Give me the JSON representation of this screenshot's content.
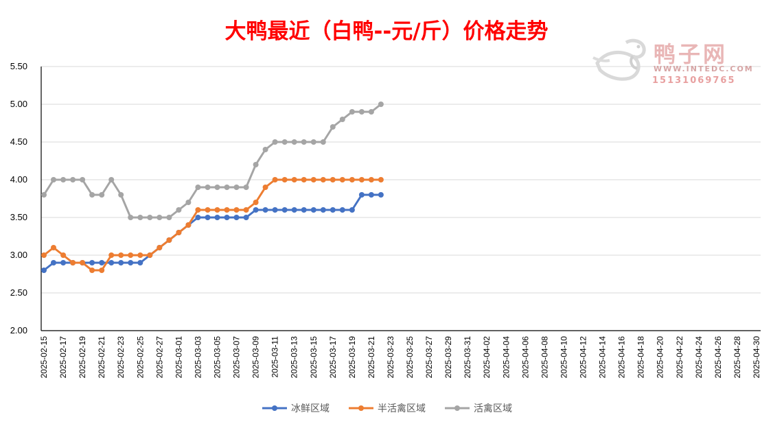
{
  "chart_data": {
    "type": "line",
    "title": "大鸭最近（白鸭--元/斤）价格走势",
    "ylim": [
      2.0,
      5.5
    ],
    "yticks": [
      "2.00",
      "2.50",
      "3.00",
      "3.50",
      "4.00",
      "4.50",
      "5.00",
      "5.50"
    ],
    "xlim": [
      "2025-02-15",
      "2025-04-30"
    ],
    "xticks": [
      "2025-02-15",
      "2025-02-17",
      "2025-02-19",
      "2025-02-21",
      "2025-02-23",
      "2025-02-25",
      "2025-02-27",
      "2025-03-01",
      "2025-03-03",
      "2025-03-05",
      "2025-03-07",
      "2025-03-09",
      "2025-03-11",
      "2025-03-13",
      "2025-03-15",
      "2025-03-17",
      "2025-03-19",
      "2025-03-21",
      "2025-03-23",
      "2025-03-25",
      "2025-03-27",
      "2025-03-29",
      "2025-03-31",
      "2025-04-02",
      "2025-04-04",
      "2025-04-06",
      "2025-04-08",
      "2025-04-10",
      "2025-04-12",
      "2025-04-14",
      "2025-04-16",
      "2025-04-18",
      "2025-04-20",
      "2025-04-22",
      "2025-04-24",
      "2025-04-26",
      "2025-04-28",
      "2025-04-30"
    ],
    "grid": true,
    "legend_position": "bottom",
    "x": [
      "2025-02-15",
      "2025-02-16",
      "2025-02-17",
      "2025-02-18",
      "2025-02-19",
      "2025-02-20",
      "2025-02-21",
      "2025-02-22",
      "2025-02-23",
      "2025-02-24",
      "2025-02-25",
      "2025-02-26",
      "2025-02-27",
      "2025-02-28",
      "2025-03-01",
      "2025-03-02",
      "2025-03-03",
      "2025-03-04",
      "2025-03-05",
      "2025-03-06",
      "2025-03-07",
      "2025-03-08",
      "2025-03-09",
      "2025-03-10",
      "2025-03-11",
      "2025-03-12",
      "2025-03-13",
      "2025-03-14",
      "2025-03-15",
      "2025-03-16",
      "2025-03-17",
      "2025-03-18",
      "2025-03-19",
      "2025-03-20",
      "2025-03-21",
      "2025-03-22"
    ],
    "series": [
      {
        "name": "冰鲜区域",
        "color": "#4472c4",
        "values": [
          2.8,
          2.9,
          2.9,
          2.9,
          2.9,
          2.9,
          2.9,
          2.9,
          2.9,
          2.9,
          2.9,
          3.0,
          3.1,
          3.2,
          3.3,
          3.4,
          3.5,
          3.5,
          3.5,
          3.5,
          3.5,
          3.5,
          3.6,
          3.6,
          3.6,
          3.6,
          3.6,
          3.6,
          3.6,
          3.6,
          3.6,
          3.6,
          3.6,
          3.8,
          3.8,
          3.8
        ]
      },
      {
        "name": "半活禽区域",
        "color": "#ed7d31",
        "values": [
          3.0,
          3.1,
          3.0,
          2.9,
          2.9,
          2.8,
          2.8,
          3.0,
          3.0,
          3.0,
          3.0,
          3.0,
          3.1,
          3.2,
          3.3,
          3.4,
          3.6,
          3.6,
          3.6,
          3.6,
          3.6,
          3.6,
          3.7,
          3.9,
          4.0,
          4.0,
          4.0,
          4.0,
          4.0,
          4.0,
          4.0,
          4.0,
          4.0,
          4.0,
          4.0,
          4.0
        ]
      },
      {
        "name": "活禽区域",
        "color": "#a5a5a5",
        "values": [
          3.8,
          4.0,
          4.0,
          4.0,
          4.0,
          3.8,
          3.8,
          4.0,
          3.8,
          3.5,
          3.5,
          3.5,
          3.5,
          3.5,
          3.6,
          3.7,
          3.9,
          3.9,
          3.9,
          3.9,
          3.9,
          3.9,
          4.2,
          4.4,
          4.5,
          4.5,
          4.5,
          4.5,
          4.5,
          4.5,
          4.7,
          4.8,
          4.9,
          4.9,
          4.9,
          5.0
        ]
      }
    ]
  },
  "watermark": {
    "name": "鸭子网",
    "url": "WWW.INTEDC.COM",
    "phone": "15131069765"
  }
}
